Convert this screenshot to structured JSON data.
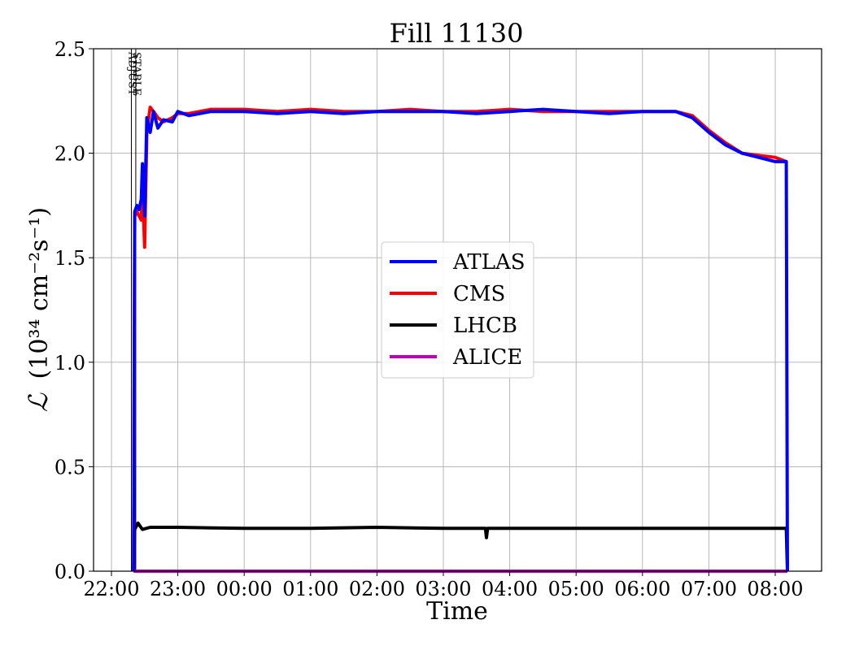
{
  "chart_data": {
    "type": "line",
    "title": "Fill 11130",
    "xlabel": "Time",
    "ylabel_symbol": "ℒ",
    "ylabel_unit": "(10³⁴ cm⁻²s⁻¹)",
    "x_ticks": [
      "22:00",
      "23:00",
      "00:00",
      "01:00",
      "02:00",
      "03:00",
      "04:00",
      "05:00",
      "06:00",
      "07:00",
      "08:00"
    ],
    "y_ticks": [
      "0.0",
      "0.5",
      "1.0",
      "1.5",
      "2.0",
      "2.5"
    ],
    "ylim": [
      0,
      2.5
    ],
    "grid": true,
    "legend_position": "center-right",
    "markers": [
      {
        "label": "ADJUST",
        "time": "22:18"
      },
      {
        "label": "STABLE",
        "time": "22:22"
      }
    ],
    "series": [
      {
        "name": "ATLAS",
        "color": "#0000ff",
        "points": [
          [
            "22:20",
            0.0
          ],
          [
            "22:21",
            1.72
          ],
          [
            "22:23",
            1.75
          ],
          [
            "22:25",
            1.73
          ],
          [
            "22:27",
            1.78
          ],
          [
            "22:28",
            1.95
          ],
          [
            "22:30",
            1.7
          ],
          [
            "22:32",
            2.17
          ],
          [
            "22:35",
            2.1
          ],
          [
            "22:38",
            2.2
          ],
          [
            "22:42",
            2.12
          ],
          [
            "22:47",
            2.16
          ],
          [
            "22:55",
            2.15
          ],
          [
            "23:00",
            2.2
          ],
          [
            "23:10",
            2.18
          ],
          [
            "23:30",
            2.2
          ],
          [
            "00:00",
            2.2
          ],
          [
            "00:30",
            2.19
          ],
          [
            "01:00",
            2.2
          ],
          [
            "01:30",
            2.19
          ],
          [
            "02:00",
            2.2
          ],
          [
            "02:30",
            2.2
          ],
          [
            "03:00",
            2.2
          ],
          [
            "03:30",
            2.19
          ],
          [
            "04:00",
            2.2
          ],
          [
            "04:30",
            2.21
          ],
          [
            "05:00",
            2.2
          ],
          [
            "05:30",
            2.19
          ],
          [
            "06:00",
            2.2
          ],
          [
            "06:30",
            2.2
          ],
          [
            "06:45",
            2.17
          ],
          [
            "07:00",
            2.1
          ],
          [
            "07:15",
            2.04
          ],
          [
            "07:30",
            2.0
          ],
          [
            "07:45",
            1.98
          ],
          [
            "08:00",
            1.96
          ],
          [
            "08:10",
            1.96
          ],
          [
            "08:11",
            0.0
          ]
        ]
      },
      {
        "name": "CMS",
        "color": "#ff0000",
        "points": [
          [
            "22:20",
            0.0
          ],
          [
            "22:21",
            1.7
          ],
          [
            "22:23",
            1.72
          ],
          [
            "22:25",
            1.7
          ],
          [
            "22:27",
            1.68
          ],
          [
            "22:28",
            1.85
          ],
          [
            "22:30",
            1.55
          ],
          [
            "22:32",
            2.1
          ],
          [
            "22:35",
            2.22
          ],
          [
            "22:38",
            2.2
          ],
          [
            "22:42",
            2.17
          ],
          [
            "22:47",
            2.15
          ],
          [
            "22:55",
            2.17
          ],
          [
            "23:00",
            2.19
          ],
          [
            "23:10",
            2.19
          ],
          [
            "23:30",
            2.21
          ],
          [
            "00:00",
            2.21
          ],
          [
            "00:30",
            2.2
          ],
          [
            "01:00",
            2.21
          ],
          [
            "01:30",
            2.2
          ],
          [
            "02:00",
            2.2
          ],
          [
            "02:30",
            2.21
          ],
          [
            "03:00",
            2.2
          ],
          [
            "03:30",
            2.2
          ],
          [
            "04:00",
            2.21
          ],
          [
            "04:30",
            2.2
          ],
          [
            "05:00",
            2.2
          ],
          [
            "05:30",
            2.2
          ],
          [
            "06:00",
            2.2
          ],
          [
            "06:30",
            2.2
          ],
          [
            "06:45",
            2.18
          ],
          [
            "07:00",
            2.11
          ],
          [
            "07:15",
            2.05
          ],
          [
            "07:30",
            2.0
          ],
          [
            "07:45",
            1.99
          ],
          [
            "08:00",
            1.98
          ],
          [
            "08:10",
            1.96
          ]
        ]
      },
      {
        "name": "LHCB",
        "color": "#000000",
        "points": [
          [
            "22:20",
            0.0
          ],
          [
            "22:21",
            0.2
          ],
          [
            "22:24",
            0.23
          ],
          [
            "22:28",
            0.2
          ],
          [
            "22:35",
            0.21
          ],
          [
            "23:00",
            0.21
          ],
          [
            "00:00",
            0.205
          ],
          [
            "01:00",
            0.205
          ],
          [
            "02:00",
            0.21
          ],
          [
            "03:00",
            0.205
          ],
          [
            "03:38",
            0.205
          ],
          [
            "03:39",
            0.16
          ],
          [
            "03:40",
            0.205
          ],
          [
            "04:00",
            0.205
          ],
          [
            "05:00",
            0.205
          ],
          [
            "06:00",
            0.205
          ],
          [
            "07:00",
            0.205
          ],
          [
            "08:00",
            0.205
          ],
          [
            "08:10",
            0.205
          ],
          [
            "08:11",
            0.0
          ]
        ]
      },
      {
        "name": "ALICE",
        "color": "#bf00bf",
        "points": [
          [
            "22:20",
            0.0
          ],
          [
            "08:11",
            0.0
          ]
        ]
      }
    ]
  }
}
